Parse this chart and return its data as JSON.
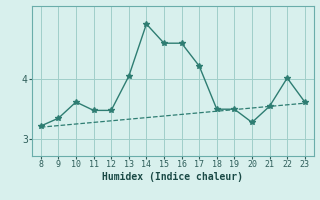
{
  "x": [
    8,
    9,
    10,
    11,
    12,
    13,
    14,
    15,
    16,
    17,
    18,
    19,
    20,
    21,
    22,
    23
  ],
  "y": [
    3.22,
    3.35,
    3.62,
    3.48,
    3.48,
    4.05,
    4.92,
    4.6,
    4.6,
    4.22,
    3.5,
    3.5,
    3.28,
    3.55,
    4.02,
    3.62
  ],
  "trend_x": [
    8,
    23
  ],
  "trend_y": [
    3.2,
    3.6
  ],
  "xlabel": "Humidex (Indice chaleur)",
  "yticks": [
    3,
    4
  ],
  "xticks": [
    8,
    9,
    10,
    11,
    12,
    13,
    14,
    15,
    16,
    17,
    18,
    19,
    20,
    21,
    22,
    23
  ],
  "xlim": [
    7.5,
    23.5
  ],
  "ylim": [
    2.72,
    5.22
  ],
  "line_color": "#2e7d72",
  "bg_color": "#d8f0ed",
  "grid_color": "#a0cec9"
}
